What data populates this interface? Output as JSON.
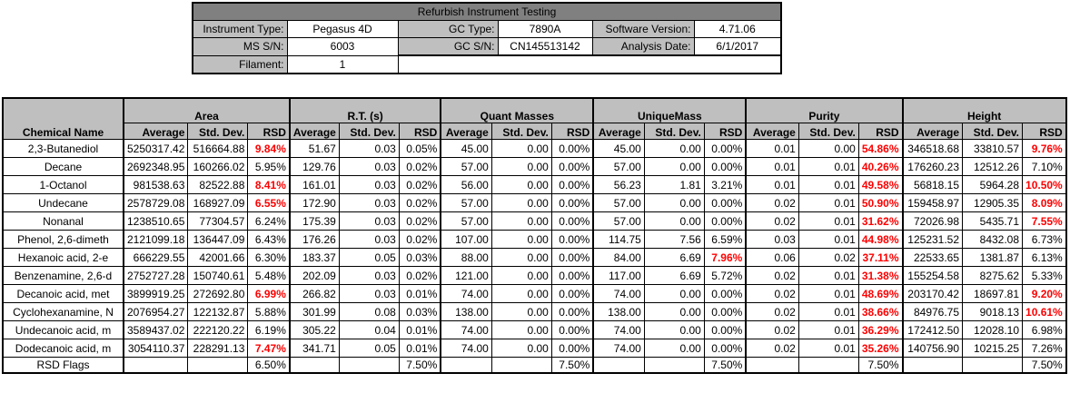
{
  "header": {
    "title": "Refurbish Instrument Testing",
    "instrument_type_label": "Instrument Type:",
    "instrument_type": "Pegasus 4D",
    "gc_type_label": "GC Type:",
    "gc_type": "7890A",
    "software_version_label": "Software Version:",
    "software_version": "4.71.06",
    "ms_sn_label": "MS S/N:",
    "ms_sn": "6003",
    "gc_sn_label": "GC S/N:",
    "gc_sn": "CN145513142",
    "analysis_date_label": "Analysis Date:",
    "analysis_date": "6/1/2017",
    "filament_label": "Filament:",
    "filament": "1"
  },
  "colors": {
    "header_fill": "#bfbfbf",
    "title_fill": "#808080",
    "flag": "#ff0000"
  },
  "table": {
    "chemical_name_header": "Chemical Name",
    "groups": [
      "Area",
      "R.T. (s)",
      "Quant Masses",
      "UniqueMass",
      "Purity",
      "Height"
    ],
    "sub_headers": [
      "Average",
      "Std. Dev.",
      "RSD"
    ],
    "rows": [
      {
        "name": "2,3-Butanediol",
        "values": [
          "5250317.42",
          "516664.88",
          "9.84%",
          "51.67",
          "0.03",
          "0.05%",
          "45.00",
          "0.00",
          "0.00%",
          "45.00",
          "0.00",
          "0.00%",
          "0.01",
          "0.00",
          "54.86%",
          "346518.68",
          "33810.57",
          "9.76%"
        ],
        "flags": [
          2,
          14,
          17
        ]
      },
      {
        "name": "Decane",
        "values": [
          "2692348.95",
          "160266.02",
          "5.95%",
          "129.76",
          "0.03",
          "0.02%",
          "57.00",
          "0.00",
          "0.00%",
          "57.00",
          "0.00",
          "0.00%",
          "0.01",
          "0.01",
          "40.26%",
          "176260.23",
          "12512.26",
          "7.10%"
        ],
        "flags": [
          14
        ]
      },
      {
        "name": "1-Octanol",
        "values": [
          "981538.63",
          "82522.88",
          "8.41%",
          "161.01",
          "0.03",
          "0.02%",
          "56.00",
          "0.00",
          "0.00%",
          "56.23",
          "1.81",
          "3.21%",
          "0.01",
          "0.01",
          "49.58%",
          "56818.15",
          "5964.28",
          "10.50%"
        ],
        "flags": [
          2,
          14,
          17
        ]
      },
      {
        "name": "Undecane",
        "values": [
          "2578729.08",
          "168927.09",
          "6.55%",
          "172.90",
          "0.03",
          "0.02%",
          "57.00",
          "0.00",
          "0.00%",
          "57.00",
          "0.00",
          "0.00%",
          "0.02",
          "0.01",
          "50.90%",
          "159458.97",
          "12905.35",
          "8.09%"
        ],
        "flags": [
          2,
          14,
          17
        ]
      },
      {
        "name": "Nonanal",
        "values": [
          "1238510.65",
          "77304.57",
          "6.24%",
          "175.39",
          "0.03",
          "0.02%",
          "57.00",
          "0.00",
          "0.00%",
          "57.00",
          "0.00",
          "0.00%",
          "0.02",
          "0.01",
          "31.62%",
          "72026.98",
          "5435.71",
          "7.55%"
        ],
        "flags": [
          14,
          17
        ]
      },
      {
        "name": "Phenol, 2,6-dimeth",
        "values": [
          "2121099.18",
          "136447.09",
          "6.43%",
          "176.26",
          "0.03",
          "0.02%",
          "107.00",
          "0.00",
          "0.00%",
          "114.75",
          "7.56",
          "6.59%",
          "0.03",
          "0.01",
          "44.98%",
          "125231.52",
          "8432.08",
          "6.73%"
        ],
        "flags": [
          14
        ]
      },
      {
        "name": "Hexanoic acid, 2-e",
        "values": [
          "666229.55",
          "42001.66",
          "6.30%",
          "183.37",
          "0.05",
          "0.03%",
          "88.00",
          "0.00",
          "0.00%",
          "84.00",
          "6.69",
          "7.96%",
          "0.06",
          "0.02",
          "37.11%",
          "22533.65",
          "1381.87",
          "6.13%"
        ],
        "flags": [
          11,
          14
        ]
      },
      {
        "name": "Benzenamine, 2,6-d",
        "values": [
          "2752727.28",
          "150740.61",
          "5.48%",
          "202.09",
          "0.03",
          "0.02%",
          "121.00",
          "0.00",
          "0.00%",
          "117.00",
          "6.69",
          "5.72%",
          "0.02",
          "0.01",
          "31.38%",
          "155254.58",
          "8275.62",
          "5.33%"
        ],
        "flags": [
          14
        ]
      },
      {
        "name": "Decanoic acid, met",
        "values": [
          "3899919.25",
          "272692.80",
          "6.99%",
          "266.82",
          "0.03",
          "0.01%",
          "74.00",
          "0.00",
          "0.00%",
          "74.00",
          "0.00",
          "0.00%",
          "0.02",
          "0.01",
          "48.69%",
          "203170.42",
          "18697.81",
          "9.20%"
        ],
        "flags": [
          2,
          14,
          17
        ]
      },
      {
        "name": "Cyclohexanamine, N",
        "values": [
          "2076954.27",
          "122132.87",
          "5.88%",
          "301.99",
          "0.08",
          "0.03%",
          "138.00",
          "0.00",
          "0.00%",
          "138.00",
          "0.00",
          "0.00%",
          "0.02",
          "0.01",
          "38.66%",
          "84976.75",
          "9018.13",
          "10.61%"
        ],
        "flags": [
          14,
          17
        ]
      },
      {
        "name": "Undecanoic acid, m",
        "values": [
          "3589437.02",
          "222120.22",
          "6.19%",
          "305.22",
          "0.04",
          "0.01%",
          "74.00",
          "0.00",
          "0.00%",
          "74.00",
          "0.00",
          "0.00%",
          "0.02",
          "0.01",
          "36.29%",
          "172412.50",
          "12028.10",
          "6.98%"
        ],
        "flags": [
          14
        ]
      },
      {
        "name": "Dodecanoic acid, m",
        "values": [
          "3054110.37",
          "228291.13",
          "7.47%",
          "341.71",
          "0.05",
          "0.01%",
          "74.00",
          "0.00",
          "0.00%",
          "74.00",
          "0.00",
          "0.00%",
          "0.02",
          "0.01",
          "35.26%",
          "140756.90",
          "10215.25",
          "7.26%"
        ],
        "flags": [
          2,
          14
        ]
      }
    ],
    "footer": {
      "name": "RSD Flags",
      "values": [
        "",
        "",
        "6.50%",
        "",
        "",
        "7.50%",
        "",
        "",
        "7.50%",
        "",
        "",
        "7.50%",
        "",
        "",
        "7.50%",
        "",
        "",
        "7.50%"
      ]
    }
  }
}
